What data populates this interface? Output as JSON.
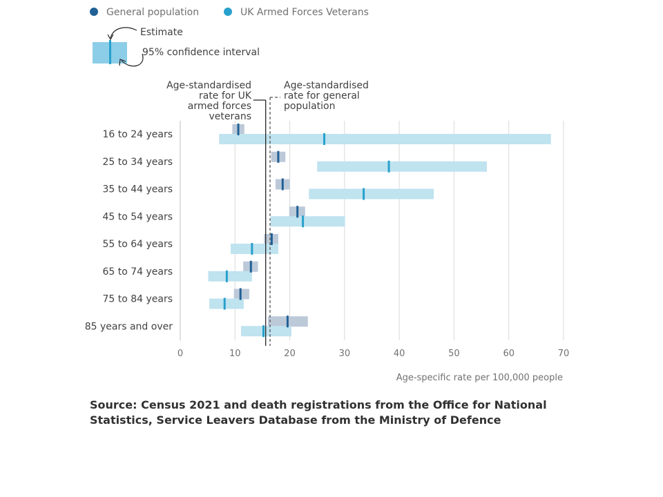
{
  "chart_data": {
    "type": "dot-interval",
    "legend": [
      {
        "name": "General population",
        "color": "#206095"
      },
      {
        "name": "UK Armed Forces Veterans",
        "color": "#27a0cc"
      }
    ],
    "key": {
      "estimate_label": "Estimate",
      "interval_label": "95% confidence interval"
    },
    "categories": [
      "16 to 24 years",
      "25 to 34 years",
      "35 to 44 years",
      "45 to 54 years",
      "55 to 64 years",
      "65 to 74 years",
      "75 to 84 years",
      "85 years and over"
    ],
    "series": [
      {
        "name": "General population",
        "color": "#206095",
        "ci_color": "#bcc9d9",
        "estimates": [
          10.6,
          17.9,
          18.7,
          21.4,
          16.7,
          12.9,
          11.0,
          19.6
        ],
        "ci_low": [
          9.5,
          16.6,
          17.4,
          19.9,
          15.3,
          11.5,
          9.8,
          16.0
        ],
        "ci_high": [
          11.7,
          19.2,
          20.0,
          22.8,
          17.9,
          14.2,
          12.6,
          23.3
        ]
      },
      {
        "name": "UK Armed Forces Veterans",
        "color": "#27a0cc",
        "ci_color": "#bfe3ef",
        "estimates": [
          26.3,
          38.1,
          33.5,
          22.4,
          13.1,
          8.5,
          8.1,
          15.2
        ],
        "ci_low": [
          7.1,
          25.0,
          23.5,
          16.5,
          9.2,
          5.1,
          5.3,
          11.1
        ],
        "ci_high": [
          67.7,
          56.0,
          46.3,
          30.1,
          17.9,
          13.1,
          11.6,
          20.3
        ]
      }
    ],
    "reference_lines": [
      {
        "label": "Age-standardised rate for UK armed forces veterans",
        "label_lines": [
          "Age-standardised",
          "rate for UK",
          "armed forces",
          "veterans"
        ],
        "value": 15.6,
        "style": "solid"
      },
      {
        "label": "Age-standardised rate for general population",
        "label_lines": [
          "Age-standardised",
          "rate for general",
          "population"
        ],
        "value": 16.4,
        "style": "dashed"
      }
    ],
    "xlim": [
      0,
      70
    ],
    "xticks": [
      0,
      10,
      20,
      30,
      40,
      50,
      60,
      70
    ],
    "xlabel": "Age-specific rate per 100,000 people",
    "grid": true
  },
  "source": "Source: Census 2021 and death registrations from the Office for National Statistics, Service Leavers Database from the Ministry of Defence"
}
